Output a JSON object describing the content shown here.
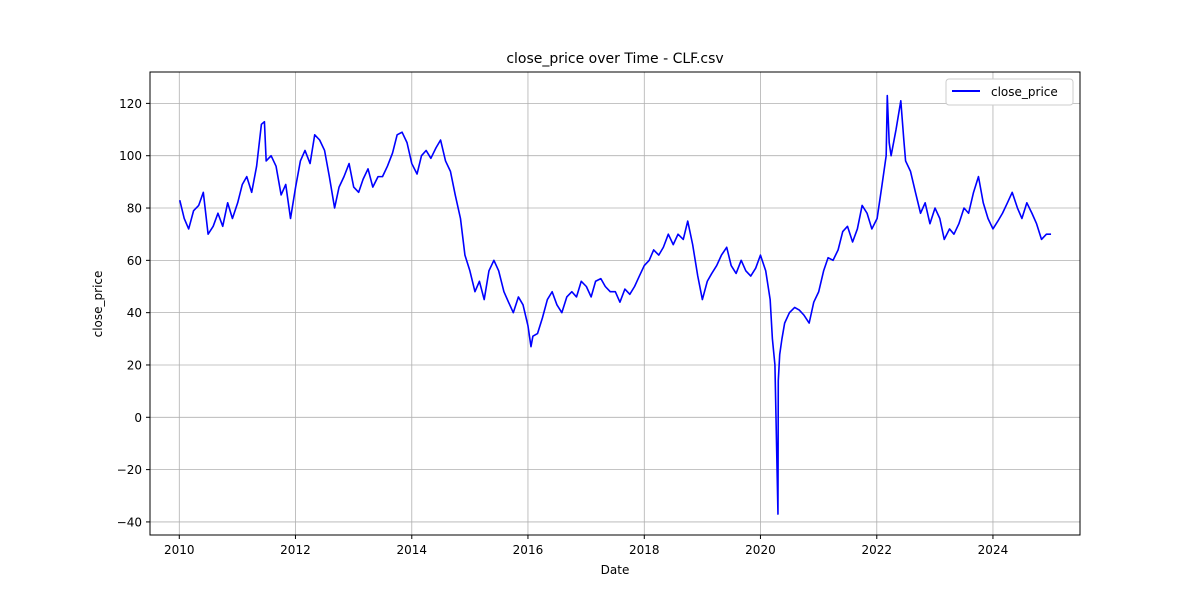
{
  "chart_data": {
    "type": "line",
    "title": "close_price over Time - CLF.csv",
    "xlabel": "Date",
    "ylabel": "close_price",
    "xlim": [
      "2009-07-01",
      "2025-07-01"
    ],
    "ylim": [
      -45,
      132
    ],
    "x_ticks": [
      "2010",
      "2012",
      "2014",
      "2016",
      "2018",
      "2020",
      "2022",
      "2024"
    ],
    "y_ticks": [
      -40,
      -20,
      0,
      20,
      40,
      60,
      80,
      100,
      120
    ],
    "grid": true,
    "legend_position": "top-right",
    "series": [
      {
        "name": "close_price",
        "color": "#0000ff",
        "points": [
          [
            "2010-01-04",
            83
          ],
          [
            "2010-02-01",
            76
          ],
          [
            "2010-03-01",
            72
          ],
          [
            "2010-04-01",
            79
          ],
          [
            "2010-05-03",
            81
          ],
          [
            "2010-06-01",
            86
          ],
          [
            "2010-07-01",
            70
          ],
          [
            "2010-08-02",
            73
          ],
          [
            "2010-09-01",
            78
          ],
          [
            "2010-10-01",
            73
          ],
          [
            "2010-11-01",
            82
          ],
          [
            "2010-12-01",
            76
          ],
          [
            "2011-01-03",
            82
          ],
          [
            "2011-02-01",
            89
          ],
          [
            "2011-03-01",
            92
          ],
          [
            "2011-04-01",
            86
          ],
          [
            "2011-05-02",
            96
          ],
          [
            "2011-06-01",
            112
          ],
          [
            "2011-06-20",
            113
          ],
          [
            "2011-07-01",
            98
          ],
          [
            "2011-08-01",
            100
          ],
          [
            "2011-09-01",
            96
          ],
          [
            "2011-10-03",
            85
          ],
          [
            "2011-11-01",
            89
          ],
          [
            "2011-12-01",
            76
          ],
          [
            "2012-01-02",
            88
          ],
          [
            "2012-02-01",
            98
          ],
          [
            "2012-03-01",
            102
          ],
          [
            "2012-04-02",
            97
          ],
          [
            "2012-05-01",
            108
          ],
          [
            "2012-06-01",
            106
          ],
          [
            "2012-07-02",
            102
          ],
          [
            "2012-08-01",
            92
          ],
          [
            "2012-09-03",
            80
          ],
          [
            "2012-10-01",
            88
          ],
          [
            "2012-11-01",
            92
          ],
          [
            "2012-12-03",
            97
          ],
          [
            "2013-01-01",
            88
          ],
          [
            "2013-02-01",
            86
          ],
          [
            "2013-03-01",
            91
          ],
          [
            "2013-04-01",
            95
          ],
          [
            "2013-05-01",
            88
          ],
          [
            "2013-06-03",
            92
          ],
          [
            "2013-07-01",
            92
          ],
          [
            "2013-08-01",
            96
          ],
          [
            "2013-09-02",
            101
          ],
          [
            "2013-10-01",
            108
          ],
          [
            "2013-11-01",
            109
          ],
          [
            "2013-12-02",
            105
          ],
          [
            "2014-01-01",
            97
          ],
          [
            "2014-02-03",
            93
          ],
          [
            "2014-03-03",
            100
          ],
          [
            "2014-04-01",
            102
          ],
          [
            "2014-05-01",
            99
          ],
          [
            "2014-06-02",
            103
          ],
          [
            "2014-07-01",
            106
          ],
          [
            "2014-08-01",
            98
          ],
          [
            "2014-09-01",
            94
          ],
          [
            "2014-10-01",
            85
          ],
          [
            "2014-11-03",
            76
          ],
          [
            "2014-12-01",
            62
          ],
          [
            "2015-01-01",
            56
          ],
          [
            "2015-02-02",
            48
          ],
          [
            "2015-03-02",
            52
          ],
          [
            "2015-04-01",
            45
          ],
          [
            "2015-05-01",
            56
          ],
          [
            "2015-06-01",
            60
          ],
          [
            "2015-07-01",
            56
          ],
          [
            "2015-08-03",
            48
          ],
          [
            "2015-09-01",
            44
          ],
          [
            "2015-10-01",
            40
          ],
          [
            "2015-11-02",
            46
          ],
          [
            "2015-12-01",
            43
          ],
          [
            "2016-01-01",
            35
          ],
          [
            "2016-01-20",
            27
          ],
          [
            "2016-02-01",
            31
          ],
          [
            "2016-03-01",
            32
          ],
          [
            "2016-04-01",
            38
          ],
          [
            "2016-05-02",
            45
          ],
          [
            "2016-06-01",
            48
          ],
          [
            "2016-07-01",
            43
          ],
          [
            "2016-08-01",
            40
          ],
          [
            "2016-09-01",
            46
          ],
          [
            "2016-10-03",
            48
          ],
          [
            "2016-11-01",
            46
          ],
          [
            "2016-12-01",
            52
          ],
          [
            "2017-01-02",
            50
          ],
          [
            "2017-02-01",
            46
          ],
          [
            "2017-03-01",
            52
          ],
          [
            "2017-04-03",
            53
          ],
          [
            "2017-05-01",
            50
          ],
          [
            "2017-06-01",
            48
          ],
          [
            "2017-07-03",
            48
          ],
          [
            "2017-08-01",
            44
          ],
          [
            "2017-09-01",
            49
          ],
          [
            "2017-10-02",
            47
          ],
          [
            "2017-11-01",
            50
          ],
          [
            "2017-12-01",
            54
          ],
          [
            "2018-01-01",
            58
          ],
          [
            "2018-02-01",
            60
          ],
          [
            "2018-03-01",
            64
          ],
          [
            "2018-04-02",
            62
          ],
          [
            "2018-05-01",
            65
          ],
          [
            "2018-06-01",
            70
          ],
          [
            "2018-07-02",
            66
          ],
          [
            "2018-08-01",
            70
          ],
          [
            "2018-09-03",
            68
          ],
          [
            "2018-10-01",
            75
          ],
          [
            "2018-11-01",
            66
          ],
          [
            "2018-12-03",
            54
          ],
          [
            "2019-01-01",
            45
          ],
          [
            "2019-02-01",
            52
          ],
          [
            "2019-03-01",
            55
          ],
          [
            "2019-04-01",
            58
          ],
          [
            "2019-05-01",
            62
          ],
          [
            "2019-06-03",
            65
          ],
          [
            "2019-07-01",
            58
          ],
          [
            "2019-08-01",
            55
          ],
          [
            "2019-09-02",
            60
          ],
          [
            "2019-10-01",
            56
          ],
          [
            "2019-11-01",
            54
          ],
          [
            "2019-12-02",
            57
          ],
          [
            "2020-01-01",
            62
          ],
          [
            "2020-02-03",
            56
          ],
          [
            "2020-03-02",
            45
          ],
          [
            "2020-03-16",
            30
          ],
          [
            "2020-04-01",
            20
          ],
          [
            "2020-04-20",
            -37
          ],
          [
            "2020-04-22",
            14
          ],
          [
            "2020-05-01",
            24
          ],
          [
            "2020-05-15",
            30
          ],
          [
            "2020-06-01",
            36
          ],
          [
            "2020-07-01",
            40
          ],
          [
            "2020-08-03",
            42
          ],
          [
            "2020-09-01",
            41
          ],
          [
            "2020-10-01",
            39
          ],
          [
            "2020-11-02",
            36
          ],
          [
            "2020-12-01",
            44
          ],
          [
            "2021-01-01",
            48
          ],
          [
            "2021-02-01",
            56
          ],
          [
            "2021-03-01",
            61
          ],
          [
            "2021-04-01",
            60
          ],
          [
            "2021-05-03",
            64
          ],
          [
            "2021-06-01",
            71
          ],
          [
            "2021-07-01",
            73
          ],
          [
            "2021-08-02",
            67
          ],
          [
            "2021-09-01",
            72
          ],
          [
            "2021-10-01",
            81
          ],
          [
            "2021-11-01",
            78
          ],
          [
            "2021-12-01",
            72
          ],
          [
            "2022-01-03",
            76
          ],
          [
            "2022-02-01",
            88
          ],
          [
            "2022-03-01",
            100
          ],
          [
            "2022-03-08",
            123
          ],
          [
            "2022-03-20",
            105
          ],
          [
            "2022-04-01",
            100
          ],
          [
            "2022-05-02",
            110
          ],
          [
            "2022-06-01",
            121
          ],
          [
            "2022-06-20",
            106
          ],
          [
            "2022-07-01",
            98
          ],
          [
            "2022-08-01",
            94
          ],
          [
            "2022-09-01",
            86
          ],
          [
            "2022-10-03",
            78
          ],
          [
            "2022-11-01",
            82
          ],
          [
            "2022-12-01",
            74
          ],
          [
            "2023-01-02",
            80
          ],
          [
            "2023-02-01",
            76
          ],
          [
            "2023-03-01",
            68
          ],
          [
            "2023-04-03",
            72
          ],
          [
            "2023-05-01",
            70
          ],
          [
            "2023-06-01",
            74
          ],
          [
            "2023-07-03",
            80
          ],
          [
            "2023-08-01",
            78
          ],
          [
            "2023-09-01",
            86
          ],
          [
            "2023-10-02",
            92
          ],
          [
            "2023-11-01",
            82
          ],
          [
            "2023-12-01",
            76
          ],
          [
            "2024-01-01",
            72
          ],
          [
            "2024-02-01",
            75
          ],
          [
            "2024-03-01",
            78
          ],
          [
            "2024-04-01",
            82
          ],
          [
            "2024-05-01",
            86
          ],
          [
            "2024-06-03",
            80
          ],
          [
            "2024-07-01",
            76
          ],
          [
            "2024-08-01",
            82
          ],
          [
            "2024-09-02",
            78
          ],
          [
            "2024-10-01",
            74
          ],
          [
            "2024-11-01",
            68
          ],
          [
            "2024-12-02",
            70
          ],
          [
            "2024-12-31",
            70
          ]
        ]
      }
    ]
  }
}
